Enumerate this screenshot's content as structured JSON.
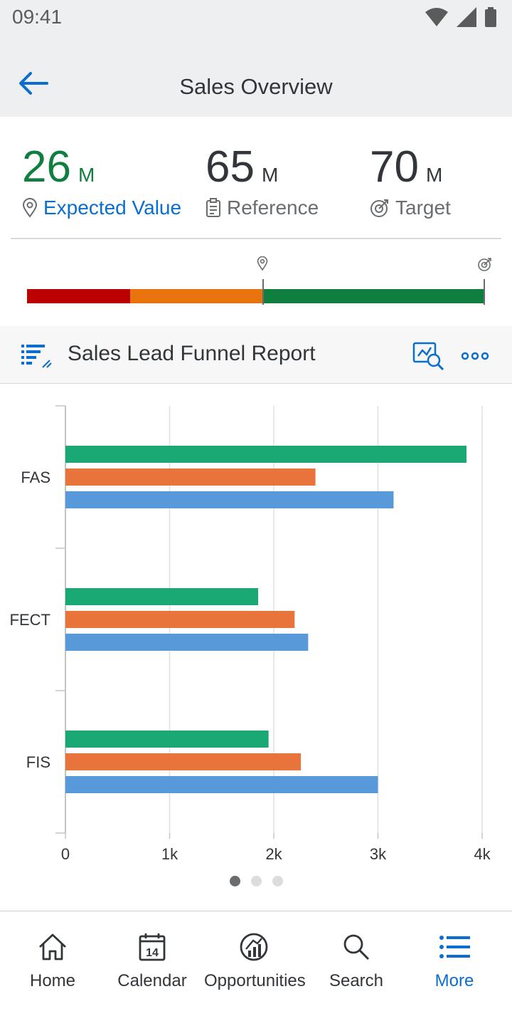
{
  "status_bar": {
    "time": "09:41"
  },
  "header": {
    "title": "Sales Overview"
  },
  "kpis": [
    {
      "value": "26",
      "unit": "M",
      "label": "Expected Value",
      "color": "#107e3e",
      "label_color": "#0a6ed1"
    },
    {
      "value": "65",
      "unit": "M",
      "label": "Reference",
      "color": "#32363a",
      "label_color": "#6a6d70"
    },
    {
      "value": "70",
      "unit": "M",
      "label": "Target",
      "color": "#32363a",
      "label_color": "#6a6d70"
    }
  ],
  "bullet": {
    "colors": {
      "red": "#bb0000",
      "orange": "#e9730c",
      "green": "#107e3e"
    }
  },
  "card": {
    "title": "Sales Lead Funnel Report"
  },
  "chart_data": {
    "type": "bar",
    "orientation": "horizontal",
    "categories": [
      "FAS",
      "FECT",
      "FIS"
    ],
    "series": [
      {
        "values": [
          3850,
          1850,
          1950
        ],
        "color": "#1aa874"
      },
      {
        "values": [
          2400,
          2200,
          2260
        ],
        "color": "#e8743b"
      },
      {
        "values": [
          3150,
          2330,
          3000
        ],
        "color": "#5899da"
      }
    ],
    "x_ticks": [
      "0",
      "1k",
      "2k",
      "3k",
      "4k"
    ],
    "xlim": [
      0,
      4000
    ],
    "grid": true
  },
  "pager": {
    "count": 3,
    "active": 0
  },
  "tabs": [
    {
      "label": "Home",
      "icon": "home-icon",
      "active": false
    },
    {
      "label": "Calendar",
      "icon": "calendar-icon",
      "badge": "14",
      "active": false
    },
    {
      "label": "Opportunities",
      "icon": "opportunities-icon",
      "active": false
    },
    {
      "label": "Search",
      "icon": "search-icon",
      "active": false
    },
    {
      "label": "More",
      "icon": "list-icon",
      "active": true
    }
  ]
}
